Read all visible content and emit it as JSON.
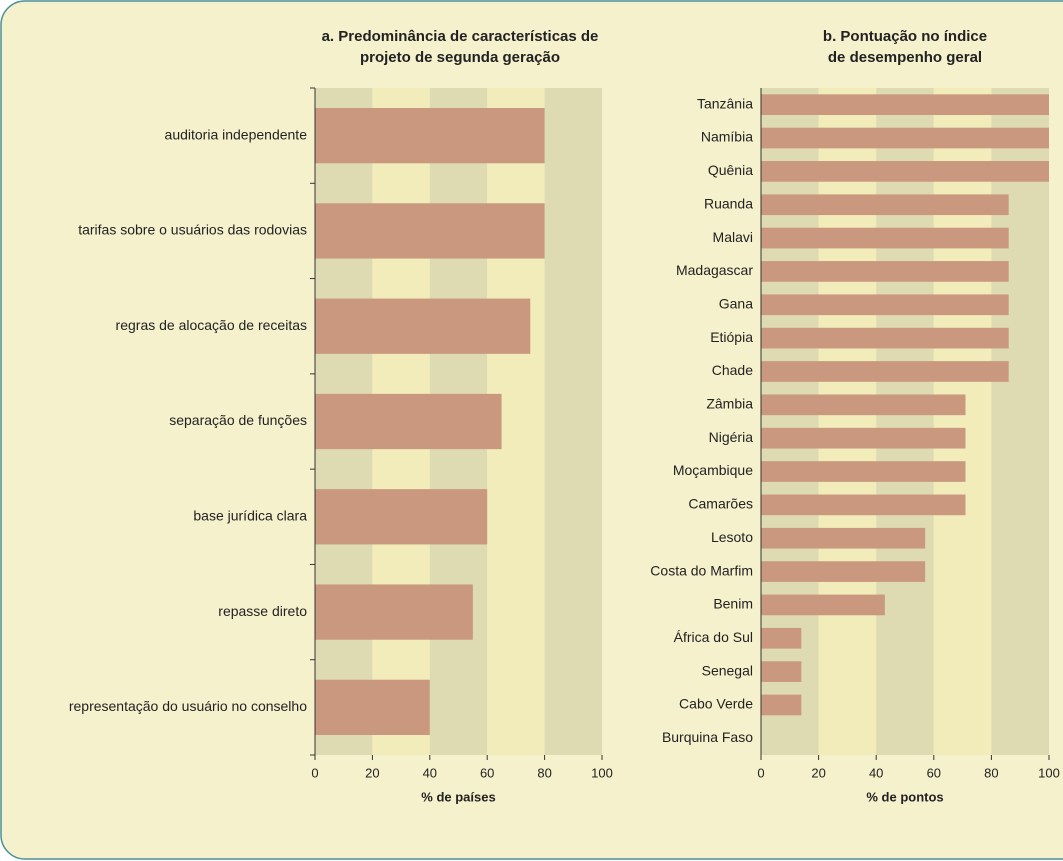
{
  "chart_data": [
    {
      "type": "bar",
      "orientation": "horizontal",
      "title": [
        "a. Predominância de características de",
        "projeto de segunda geração"
      ],
      "x_label": "% de países",
      "categories": [
        "auditoria independente",
        "tarifas sobre o usuários das rodovias",
        "regras de alocação de receitas",
        "separação de funções",
        "base jurídica clara",
        "repasse direto",
        "representação do usuário no conselho"
      ],
      "values": [
        80,
        80,
        75,
        65,
        60,
        55,
        40
      ],
      "color": "#c9987f",
      "xlim": [
        0,
        100
      ],
      "xticks": [
        0,
        20,
        40,
        60,
        80,
        100
      ]
    },
    {
      "type": "bar",
      "orientation": "horizontal",
      "title": [
        "b. Pontuação no índice",
        "de desempenho geral"
      ],
      "x_label": "% de pontos",
      "categories": [
        "Tanzânia",
        "Namíbia",
        "Quênia",
        "Ruanda",
        "Malavi",
        "Madagascar",
        "Gana",
        "Etiópia",
        "Chade",
        "Zâmbia",
        "Nigéria",
        "Moçambique",
        "Camarões",
        "Lesoto",
        "Costa do Marfim",
        "Benim",
        "África do Sul",
        "Senegal",
        "Cabo Verde",
        "Burquina Faso"
      ],
      "values": [
        100,
        100,
        100,
        86,
        86,
        86,
        86,
        86,
        86,
        71,
        71,
        71,
        71,
        57,
        57,
        43,
        14,
        14,
        14,
        0
      ],
      "color": "#c9987f",
      "xlim": [
        0,
        100
      ],
      "xticks": [
        0,
        20,
        40,
        60,
        80,
        100
      ]
    }
  ]
}
